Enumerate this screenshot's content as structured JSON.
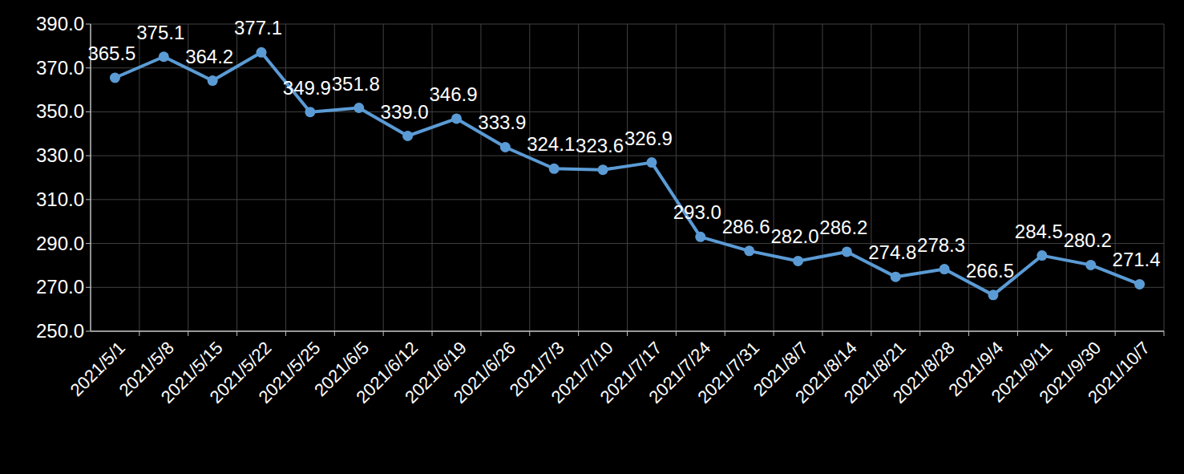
{
  "chart_data": {
    "type": "line",
    "categories": [
      "2021/5/1",
      "2021/5/8",
      "2021/5/15",
      "2021/5/22",
      "2021/5/25",
      "2021/6/5",
      "2021/6/12",
      "2021/6/19",
      "2021/6/26",
      "2021/7/3",
      "2021/7/10",
      "2021/7/17",
      "2021/7/24",
      "2021/7/31",
      "2021/8/7",
      "2021/8/14",
      "2021/8/21",
      "2021/8/28",
      "2021/9/4",
      "2021/9/11",
      "2021/9/30",
      "2021/10/7"
    ],
    "values": [
      365.5,
      375.1,
      364.2,
      377.1,
      349.9,
      351.8,
      339.0,
      346.9,
      333.9,
      324.1,
      323.6,
      326.9,
      293.0,
      286.6,
      282.0,
      286.2,
      274.8,
      278.3,
      266.5,
      284.5,
      280.2,
      271.4
    ],
    "value_labels": [
      "365.5",
      "375.1",
      "364.2",
      "377.1",
      "349.9",
      "351.8",
      "339.0",
      "346.9",
      "333.9",
      "324.1",
      "323.6",
      "326.9",
      "293.0",
      "286.6",
      "282.0",
      "286.2",
      "274.8",
      "278.3",
      "266.5",
      "284.5",
      "280.2",
      "271.4"
    ],
    "color": "#5b9bd5",
    "marker": "circle",
    "line_style": "solid",
    "data_labels": true,
    "grid": true,
    "ylim": [
      250,
      390
    ],
    "yticks": [
      {
        "value": 250,
        "label": "250.0"
      },
      {
        "value": 270,
        "label": "270.0"
      },
      {
        "value": 290,
        "label": "290.0"
      },
      {
        "value": 310,
        "label": "310.0"
      },
      {
        "value": 330,
        "label": "330.0"
      },
      {
        "value": 350,
        "label": "350.0"
      },
      {
        "value": 370,
        "label": "370.0"
      },
      {
        "value": 390,
        "label": "390.0"
      }
    ]
  }
}
